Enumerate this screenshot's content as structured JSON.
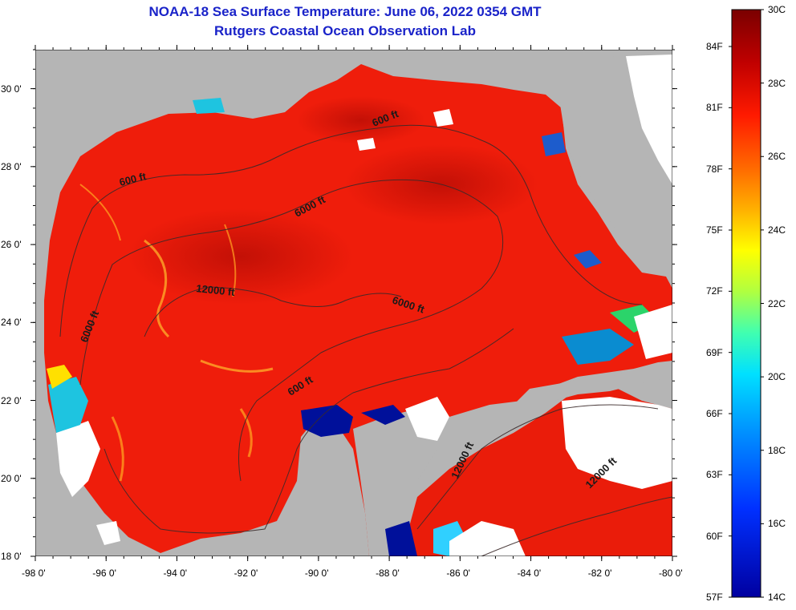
{
  "title": "NOAA-18 Sea Surface Temperature:  June 06, 2022 0354 GMT",
  "subtitle": "Rutgers Coastal Ocean Observation Lab",
  "map": {
    "lon_min": -98,
    "lon_max": -80,
    "lat_min": 18,
    "lat_max": 31,
    "x_ticks": [
      -98,
      -96,
      -94,
      -92,
      -90,
      -88,
      -86,
      -84,
      -82,
      -80
    ],
    "x_tick_labels": [
      "-98 0'",
      "-96 0'",
      "-94 0'",
      "-92 0'",
      "-90 0'",
      "-88 0'",
      "-86 0'",
      "-84 0'",
      "-82 0'",
      "-80 0'"
    ],
    "y_ticks": [
      18,
      20,
      22,
      24,
      26,
      28,
      30
    ],
    "y_tick_labels": [
      "18 0'",
      "20 0'",
      "22 0'",
      "24 0'",
      "26 0'",
      "28 0'",
      "30 0'"
    ],
    "land_color": "#b5b5b5",
    "water_color": "#ef1d0b",
    "cloud_color": "#ffffff"
  },
  "depth_contours": [
    {
      "label": "600 ft"
    },
    {
      "label": "600 ft"
    },
    {
      "label": "600 ft"
    },
    {
      "label": "6000 ft"
    },
    {
      "label": "6000 ft"
    },
    {
      "label": "6000 ft"
    },
    {
      "label": "12000 ft"
    },
    {
      "label": "12000 ft"
    },
    {
      "label": "12000 ft"
    }
  ],
  "color_scale": {
    "fahrenheit_labels": [
      "84F",
      "81F",
      "78F",
      "75F",
      "72F",
      "69F",
      "66F",
      "63F",
      "60F",
      "57F"
    ],
    "celsius_labels": [
      "30C",
      "28C",
      "26C",
      "24C",
      "22C",
      "20C",
      "18C",
      "16C",
      "14C"
    ],
    "stops": [
      "#7a0000",
      "#c00000",
      "#ff1a00",
      "#ff6a00",
      "#ffb000",
      "#ffff00",
      "#b0ff40",
      "#40ffb0",
      "#00e0ff",
      "#0090ff",
      "#0030ff",
      "#0000a0"
    ]
  }
}
